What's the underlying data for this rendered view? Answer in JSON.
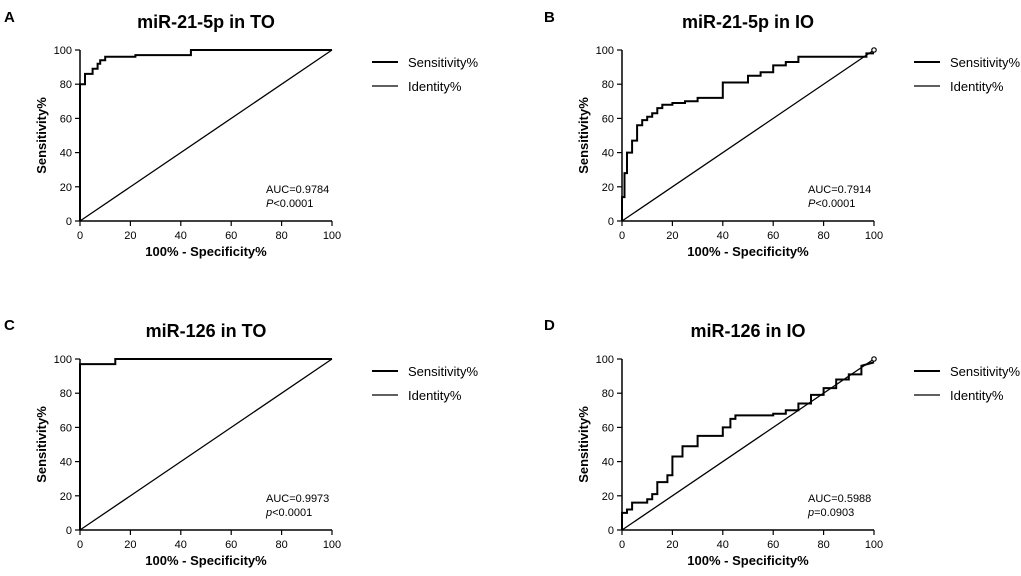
{
  "chart_data": [
    {
      "panel": "A",
      "type": "line",
      "title": "miR-21-5p in TO",
      "xlabel": "100% - Specificity%",
      "ylabel": "Sensitivity%",
      "xlim": [
        0,
        100
      ],
      "ylim": [
        0,
        100
      ],
      "xticks": [
        "0",
        "20",
        "40",
        "60",
        "80",
        "100"
      ],
      "yticks": [
        "0",
        "20",
        "40",
        "60",
        "80",
        "100"
      ],
      "legend": [
        "Sensitivity%",
        "Identity%"
      ],
      "legend_position": "right",
      "annotation": {
        "auc": "AUC=0.9784",
        "p_letter": "P",
        "p_rest": "<0.0001"
      },
      "series": [
        {
          "name": "Sensitivity%",
          "x": [
            0,
            0,
            2,
            2,
            5,
            5,
            7,
            7,
            8,
            8,
            10,
            10,
            22,
            22,
            44,
            44,
            100
          ],
          "y": [
            0,
            80,
            80,
            86,
            86,
            89,
            89,
            92,
            92,
            94,
            94,
            96,
            96,
            97,
            97,
            100,
            100
          ]
        },
        {
          "name": "Identity%",
          "x": [
            0,
            100
          ],
          "y": [
            0,
            100
          ]
        }
      ]
    },
    {
      "panel": "B",
      "type": "line",
      "title": "miR-21-5p in IO",
      "xlabel": "100% - Specificity%",
      "ylabel": "Sensitivity%",
      "xlim": [
        0,
        100
      ],
      "ylim": [
        0,
        100
      ],
      "xticks": [
        "0",
        "20",
        "40",
        "60",
        "80",
        "100"
      ],
      "yticks": [
        "0",
        "20",
        "40",
        "60",
        "80",
        "100"
      ],
      "legend": [
        "Sensitivity%",
        "Identity%"
      ],
      "legend_position": "right",
      "annotation": {
        "auc": "AUC=0.7914",
        "p_letter": "P",
        "p_rest": "<0.0001"
      },
      "series": [
        {
          "name": "Sensitivity%",
          "x": [
            0,
            0,
            1,
            1,
            2,
            2,
            4,
            4,
            6,
            6,
            8,
            8,
            10,
            10,
            12,
            12,
            14,
            14,
            16,
            16,
            20,
            20,
            25,
            25,
            30,
            30,
            40,
            40,
            50,
            50,
            55,
            55,
            60,
            60,
            65,
            65,
            70,
            70,
            97,
            97,
            100
          ],
          "y": [
            0,
            14,
            14,
            28,
            28,
            40,
            40,
            47,
            47,
            56,
            56,
            59,
            59,
            61,
            61,
            63,
            63,
            66,
            66,
            68,
            68,
            69,
            69,
            70,
            70,
            72,
            72,
            81,
            81,
            85,
            85,
            87,
            87,
            91,
            91,
            93,
            93,
            96,
            96,
            98,
            98
          ]
        },
        {
          "name": "Identity%",
          "x": [
            0,
            100
          ],
          "y": [
            0,
            100
          ]
        }
      ]
    },
    {
      "panel": "C",
      "type": "line",
      "title": "miR-126 in TO",
      "xlabel": "100% - Specificity%",
      "ylabel": "Sensitivity%",
      "xlim": [
        0,
        100
      ],
      "ylim": [
        0,
        100
      ],
      "xticks": [
        "0",
        "20",
        "40",
        "60",
        "80",
        "100"
      ],
      "yticks": [
        "0",
        "20",
        "40",
        "60",
        "80",
        "100"
      ],
      "legend": [
        "Sensitivity%",
        "Identity%"
      ],
      "legend_position": "right",
      "annotation": {
        "auc": "AUC=0.9973",
        "p_letter": "p",
        "p_rest": "<0.0001"
      },
      "series": [
        {
          "name": "Sensitivity%",
          "x": [
            0,
            0,
            14,
            14,
            100
          ],
          "y": [
            0,
            97,
            97,
            100,
            100
          ]
        },
        {
          "name": "Identity%",
          "x": [
            0,
            100
          ],
          "y": [
            0,
            100
          ]
        }
      ]
    },
    {
      "panel": "D",
      "type": "line",
      "title": "miR-126 in IO",
      "xlabel": "100% - Specificity%",
      "ylabel": "Sensitivity%",
      "xlim": [
        0,
        100
      ],
      "ylim": [
        0,
        100
      ],
      "xticks": [
        "0",
        "20",
        "40",
        "60",
        "80",
        "100"
      ],
      "yticks": [
        "0",
        "20",
        "40",
        "60",
        "80",
        "100"
      ],
      "legend": [
        "Sensitivity%",
        "Identity%"
      ],
      "legend_position": "right",
      "annotation": {
        "auc": "AUC=0.5988",
        "p_letter": "p",
        "p_rest": "=0.0903"
      },
      "series": [
        {
          "name": "Sensitivity%",
          "x": [
            0,
            0,
            2,
            2,
            4,
            4,
            10,
            10,
            12,
            12,
            14,
            14,
            18,
            18,
            20,
            20,
            24,
            24,
            30,
            30,
            36,
            36,
            40,
            40,
            43,
            43,
            45,
            45,
            55,
            55,
            60,
            60,
            65,
            65,
            70,
            70,
            75,
            75,
            80,
            80,
            85,
            85,
            90,
            90,
            95,
            95,
            100
          ],
          "y": [
            0,
            10,
            10,
            12,
            12,
            16,
            16,
            18,
            18,
            21,
            21,
            28,
            28,
            32,
            32,
            43,
            43,
            49,
            49,
            55,
            55,
            55,
            55,
            60,
            60,
            65,
            65,
            67,
            67,
            67,
            67,
            68,
            68,
            70,
            70,
            74,
            74,
            79,
            79,
            83,
            83,
            88,
            88,
            91,
            91,
            96,
            98
          ]
        },
        {
          "name": "Identity%",
          "x": [
            0,
            100
          ],
          "y": [
            0,
            100
          ]
        }
      ]
    }
  ]
}
